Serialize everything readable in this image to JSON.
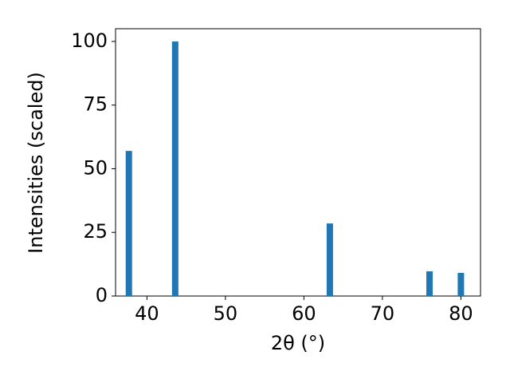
{
  "chart_data": {
    "type": "bar",
    "x_label": "2θ (°)",
    "y_label": "Intensities (scaled)",
    "x": [
      37.7,
      43.6,
      63.3,
      76.0,
      80.0
    ],
    "values": [
      57.0,
      100,
      28.5,
      9.7,
      9.1
    ],
    "color": "#1f77b4",
    "xlim": [
      36.0,
      82.5
    ],
    "xticks": [
      40,
      50,
      60,
      70,
      80
    ],
    "ylim": [
      0,
      105
    ],
    "yticks": [
      0,
      25,
      50,
      75,
      100
    ]
  }
}
